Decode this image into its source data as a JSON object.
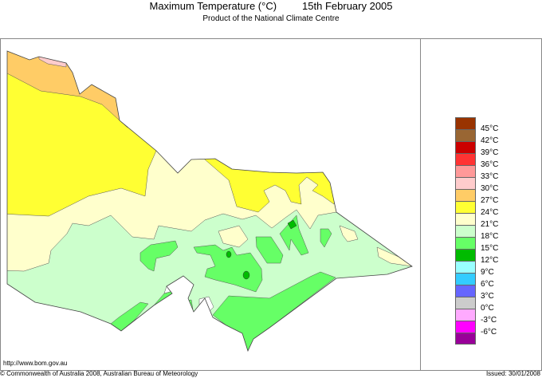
{
  "header": {
    "title": "Maximum Temperature (°C)",
    "date": "15th February 2005",
    "subtitle": "Product of the National Climate Centre"
  },
  "legend": {
    "colors": [
      "#993300",
      "#996633",
      "#cc0000",
      "#ff3333",
      "#ff9999",
      "#ffcccc",
      "#ffcc66",
      "#ffff33",
      "#ffffcc",
      "#ccffcc",
      "#66ff66",
      "#00bb00",
      "#99ffff",
      "#33ccff",
      "#6666ff",
      "#cccccc",
      "#ffaaff",
      "#ff00ff",
      "#990099"
    ],
    "labels": [
      "45°C",
      "42°C",
      "39°C",
      "36°C",
      "33°C",
      "30°C",
      "27°C",
      "24°C",
      "21°C",
      "18°C",
      "15°C",
      "12°C",
      "9°C",
      "6°C",
      "3°C",
      "0°C",
      "-3°C",
      "-6°C"
    ]
  },
  "footer": {
    "url": "http://www.bom.gov.au",
    "copyright": "© Commonwealth of Australia 2008, Australian Bureau of Meteorology",
    "issued": "Issued: 30/01/2008"
  }
}
